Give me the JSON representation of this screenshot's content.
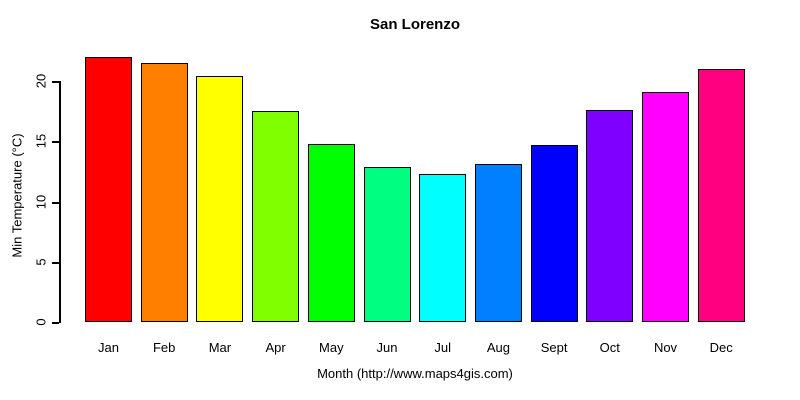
{
  "chart_data": {
    "type": "bar",
    "title": "San Lorenzo",
    "xlabel": "Month (http://www.maps4gis.com)",
    "ylabel": "Min Temperature (°C)",
    "categories": [
      "Jan",
      "Feb",
      "Mar",
      "Apr",
      "May",
      "Jun",
      "Jul",
      "Aug",
      "Sept",
      "Oct",
      "Nov",
      "Dec"
    ],
    "values": [
      22.0,
      21.5,
      20.4,
      17.5,
      14.8,
      12.9,
      12.3,
      13.1,
      14.7,
      17.6,
      19.1,
      21.0
    ],
    "bar_colors": [
      "#FF0000",
      "#FF8000",
      "#FFFF00",
      "#80FF00",
      "#00FF00",
      "#00FF80",
      "#00FFFF",
      "#0080FF",
      "#0000FF",
      "#8000FF",
      "#FF00FF",
      "#FF0080"
    ],
    "yticks": [
      0,
      5,
      10,
      15,
      20
    ],
    "ylim": [
      0,
      20
    ],
    "grid": false,
    "legend": "none",
    "axis_color": "#000000",
    "background_color": "#FFFFFF"
  }
}
